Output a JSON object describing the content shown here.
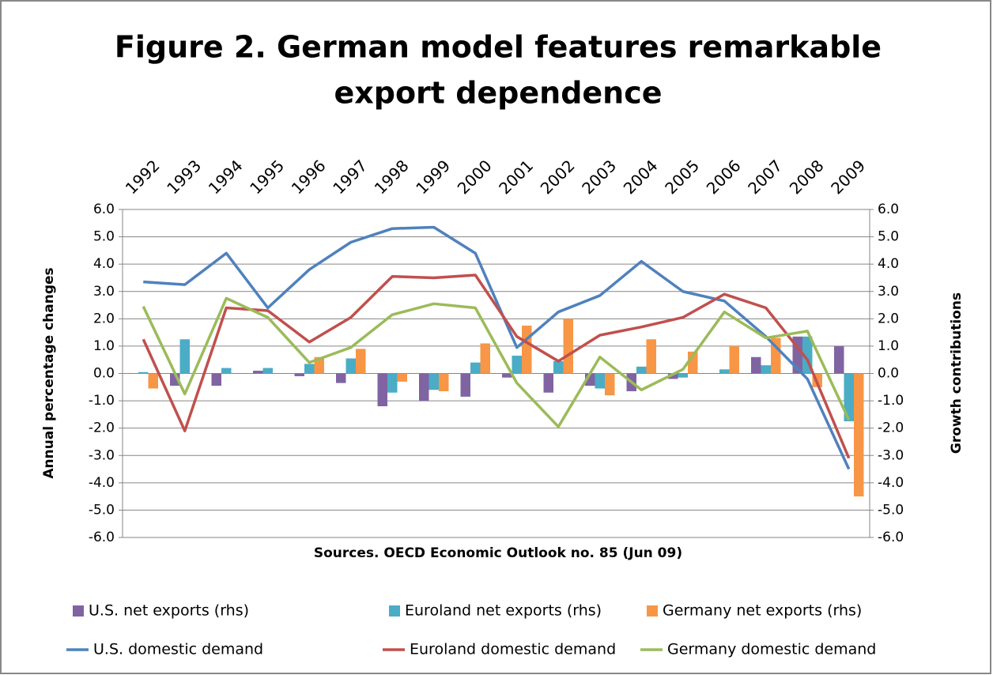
{
  "chart_data": {
    "type": "bar",
    "title": [
      "Figure 2.  German model features remarkable",
      "export dependence"
    ],
    "xlabel": "Sources. OECD Economic Outlook no. 85 (Jun 09)",
    "ylabel": "Annual percentage changes",
    "y2label": "Growth contributions",
    "categories": [
      "1992",
      "1993",
      "1994",
      "1995",
      "1996",
      "1997",
      "1998",
      "1999",
      "2000",
      "2001",
      "2002",
      "2003",
      "2004",
      "2005",
      "2006",
      "2007",
      "2008",
      "2009"
    ],
    "series": [
      {
        "name": "U.S. net exports (rhs)",
        "type": "bar",
        "axis": "y2",
        "color": "#8064a2",
        "values": [
          0,
          -0.45,
          -0.45,
          0.1,
          -0.1,
          -0.35,
          -1.2,
          -1.0,
          -0.85,
          -0.15,
          -0.7,
          -0.45,
          -0.65,
          -0.2,
          0,
          0.6,
          1.35,
          1.0
        ]
      },
      {
        "name": "Euroland net exports (rhs)",
        "type": "bar",
        "axis": "y2",
        "color": "#4bacc6",
        "values": [
          0.05,
          1.25,
          0.2,
          0.2,
          0.35,
          0.55,
          -0.7,
          -0.6,
          0.4,
          0.65,
          0.45,
          -0.55,
          0.25,
          -0.15,
          0.15,
          0.3,
          1.35,
          -1.75
        ]
      },
      {
        "name": "Germany net exports (rhs)",
        "type": "bar",
        "axis": "y2",
        "color": "#f79646",
        "values": [
          -0.55,
          0,
          0,
          0,
          0.6,
          0.9,
          -0.3,
          -0.65,
          1.1,
          1.75,
          2.0,
          -0.8,
          1.25,
          0.8,
          1.0,
          1.3,
          -0.5,
          -4.5
        ]
      },
      {
        "name": "U.S. domestic demand",
        "type": "line",
        "color": "#4f81bd",
        "values": [
          3.35,
          3.25,
          4.4,
          2.4,
          3.8,
          4.8,
          5.3,
          5.35,
          4.4,
          0.95,
          2.25,
          2.85,
          4.1,
          3.0,
          2.65,
          1.35,
          -0.2,
          -3.5
        ]
      },
      {
        "name": "Euroland domestic demand",
        "type": "line",
        "color": "#c0504d",
        "values": [
          1.25,
          -2.1,
          2.4,
          2.3,
          1.15,
          2.05,
          3.55,
          3.5,
          3.6,
          1.35,
          0.45,
          1.4,
          1.7,
          2.05,
          2.9,
          2.4,
          0.5,
          -3.1
        ]
      },
      {
        "name": "Germany domestic demand",
        "type": "line",
        "color": "#9bbb59",
        "values": [
          2.45,
          -0.75,
          2.75,
          2.05,
          0.4,
          0.95,
          2.15,
          2.55,
          2.4,
          -0.35,
          -1.95,
          0.6,
          -0.6,
          0.15,
          2.25,
          1.3,
          1.55,
          -1.7
        ]
      }
    ],
    "ylim": [
      -6,
      6
    ],
    "yticks": [
      {
        "value": -6,
        "label": "-6.0"
      },
      {
        "value": -5,
        "label": "-5.0"
      },
      {
        "value": -4,
        "label": "-4.0"
      },
      {
        "value": -3,
        "label": "-3.0"
      },
      {
        "value": -2,
        "label": "-2.0"
      },
      {
        "value": -1,
        "label": "-1.0"
      },
      {
        "value": 0,
        "label": "0.0"
      },
      {
        "value": 1,
        "label": "1.0"
      },
      {
        "value": 2,
        "label": "2.0"
      },
      {
        "value": 3,
        "label": "3.0"
      },
      {
        "value": 4,
        "label": "4.0"
      },
      {
        "value": 5,
        "label": "5.0"
      },
      {
        "value": 6,
        "label": "6.0"
      }
    ],
    "y2lim": [
      -6,
      6
    ],
    "y2ticks": [
      {
        "value": -6,
        "label": "-6.0"
      },
      {
        "value": -5,
        "label": "-5.0"
      },
      {
        "value": -4,
        "label": "-4.0"
      },
      {
        "value": -3,
        "label": "-3.0"
      },
      {
        "value": -2,
        "label": "-2.0"
      },
      {
        "value": -1,
        "label": "-1.0"
      },
      {
        "value": 0,
        "label": "0.0"
      },
      {
        "value": 1,
        "label": "1.0"
      },
      {
        "value": 2,
        "label": "2.0"
      },
      {
        "value": 3,
        "label": "3.0"
      },
      {
        "value": 4,
        "label": "4.0"
      },
      {
        "value": 5,
        "label": "5.0"
      },
      {
        "value": 6,
        "label": "6.0"
      }
    ],
    "grid": true
  }
}
